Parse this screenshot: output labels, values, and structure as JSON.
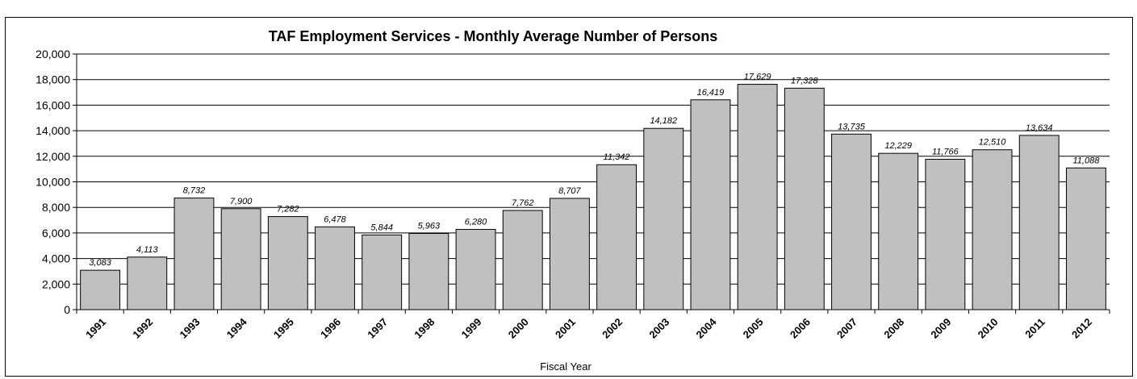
{
  "chart_data": {
    "type": "bar",
    "title": "TAF Employment Services - Monthly Average Number of Persons",
    "xlabel": "Fiscal Year",
    "ylabel": "",
    "ylim": [
      0,
      20000
    ],
    "yticks": [
      "0",
      "2,000",
      "4,000",
      "6,000",
      "8,000",
      "10,000",
      "12,000",
      "14,000",
      "16,000",
      "18,000",
      "20,000"
    ],
    "ytick_values": [
      0,
      2000,
      4000,
      6000,
      8000,
      10000,
      12000,
      14000,
      16000,
      18000,
      20000
    ],
    "grid": true,
    "bar_color": "#c0c0c0",
    "categories": [
      "1991",
      "1992",
      "1993",
      "1994",
      "1995",
      "1996",
      "1997",
      "1998",
      "1999",
      "2000",
      "2001",
      "2002",
      "2003",
      "2004",
      "2005",
      "2006",
      "2007",
      "2008",
      "2009",
      "2010",
      "2011",
      "2012"
    ],
    "values": [
      3083,
      4113,
      8732,
      7900,
      7282,
      6478,
      5844,
      5963,
      6280,
      7762,
      8707,
      11342,
      14182,
      16419,
      17629,
      17328,
      13735,
      12229,
      11766,
      12510,
      13634,
      11088
    ],
    "data_labels": [
      "3,083",
      "4,113",
      "8,732",
      "7,900",
      "7,282",
      "6,478",
      "5,844",
      "5,963",
      "6,280",
      "7,762",
      "8,707",
      "11,342",
      "14,182",
      "16,419",
      "17,629",
      "17,328",
      "13,735",
      "12,229",
      "11,766",
      "12,510",
      "13,634",
      "11,088"
    ]
  }
}
